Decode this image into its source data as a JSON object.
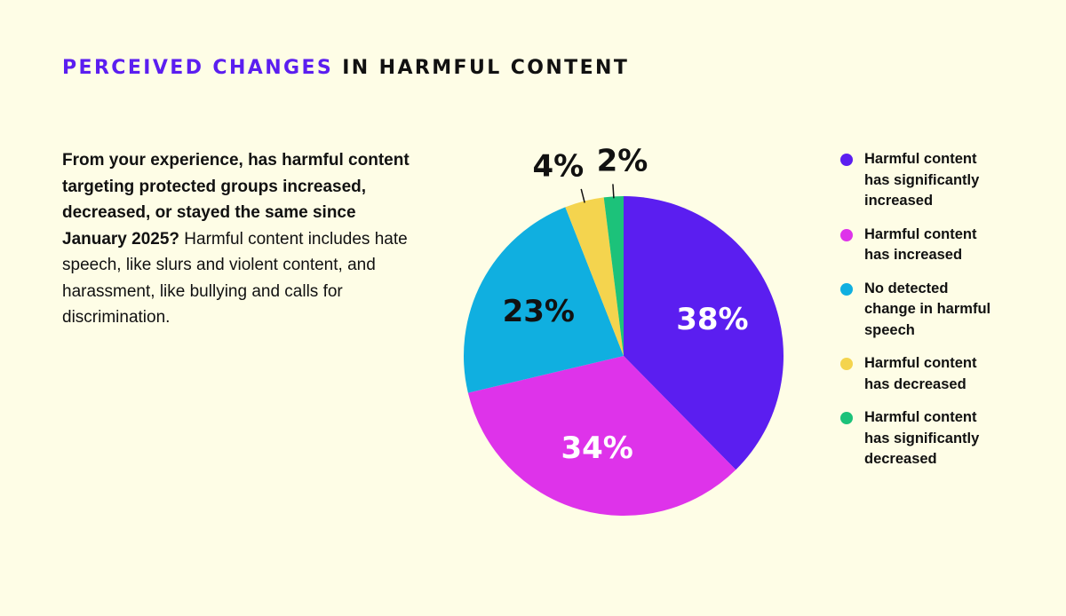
{
  "heading": {
    "accent": "PERCEIVED CHANGES",
    "rest": " IN HARMFUL CONTENT"
  },
  "question": {
    "bold": "From your experience, has harmful content targeting protected groups increased, decreased, or stayed the same since January 2025?",
    "normal": " Harmful content includes hate speech, like slurs and violent content, and harassment, like bullying and calls for discrimination."
  },
  "chart_data": {
    "type": "pie",
    "title": "",
    "unit": "%",
    "categories": [
      "Harmful content has significantly increased",
      "Harmful content has increased",
      "No detected change in harmful speech",
      "Harmful content has decreased",
      "Harmful content has significantly decreased"
    ],
    "values": [
      38,
      34,
      23,
      4,
      2
    ],
    "labels": [
      "38%",
      "34%",
      "23%",
      "4%",
      "2%"
    ],
    "colors": [
      "#5b1ef0",
      "#de33ea",
      "#10afe0",
      "#f4d44e",
      "#1cc27a"
    ],
    "legend_placement": "right",
    "start_angle": "12 o'clock, clockwise"
  }
}
